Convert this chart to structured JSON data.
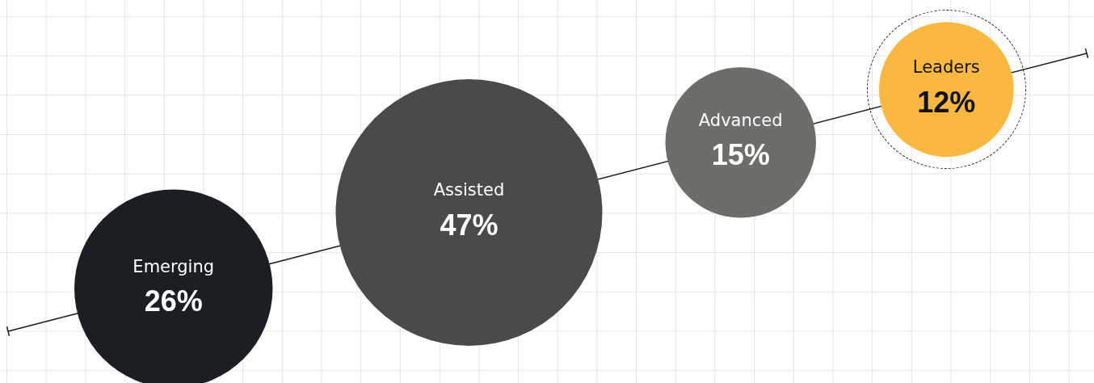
{
  "chart_data": {
    "type": "other",
    "categories": [
      "Emerging",
      "Assisted",
      "Advanced",
      "Leaders"
    ],
    "values": [
      26,
      47,
      15,
      12
    ],
    "value_labels": [
      "26%",
      "47%",
      "15%",
      "12%"
    ],
    "colors": [
      "#1b1f24",
      "#4a4a4a",
      "#6c6e69",
      "#fbb841"
    ]
  }
}
